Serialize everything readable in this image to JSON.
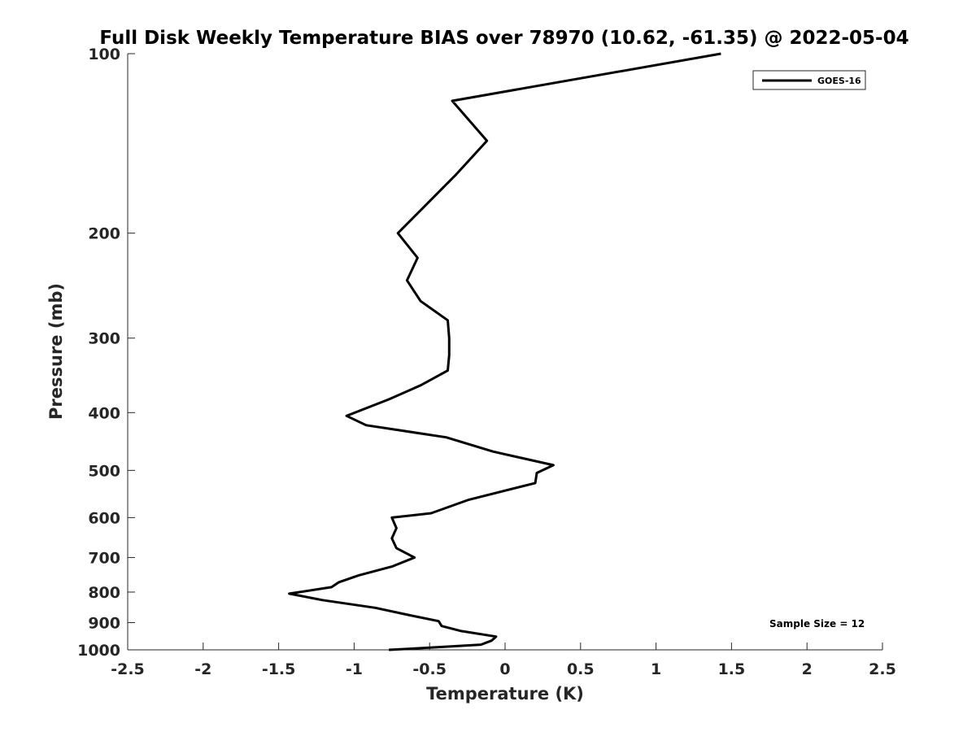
{
  "chart_data": {
    "type": "line",
    "title": "Full Disk Weekly Temperature BIAS over 78970 (10.62, -61.35) @ 2022-05-04",
    "xlabel": "Temperature (K)",
    "ylabel": "Pressure (mb)",
    "xlim": [
      -2.5,
      2.5
    ],
    "ylim": [
      100,
      1000
    ],
    "y_scale": "log",
    "y_reversed": true,
    "grid": false,
    "legend_position": "top-right",
    "x_ticks": [
      -2.5,
      -2,
      -1.5,
      -1,
      -0.5,
      0,
      0.5,
      1,
      1.5,
      2,
      2.5
    ],
    "x_tick_labels": [
      "-2.5",
      "-2",
      "-1.5",
      "-1",
      "-0.5",
      "0",
      "0.5",
      "1",
      "1.5",
      "2",
      "2.5"
    ],
    "y_ticks": [
      100,
      200,
      300,
      400,
      500,
      600,
      700,
      800,
      900,
      1000
    ],
    "y_tick_labels": [
      "100",
      "200",
      "300",
      "400",
      "500",
      "600",
      "700",
      "800",
      "900",
      "1000"
    ],
    "annotation": "Sample Size = 12",
    "series": [
      {
        "name": "GOES-16",
        "color": "#000000",
        "points": [
          {
            "t": 1.43,
            "p": 100
          },
          {
            "t": -0.35,
            "p": 120
          },
          {
            "t": -0.12,
            "p": 140
          },
          {
            "t": -0.33,
            "p": 160
          },
          {
            "t": -0.53,
            "p": 180
          },
          {
            "t": -0.71,
            "p": 200
          },
          {
            "t": -0.58,
            "p": 220
          },
          {
            "t": -0.65,
            "p": 240
          },
          {
            "t": -0.56,
            "p": 260
          },
          {
            "t": -0.38,
            "p": 280
          },
          {
            "t": -0.37,
            "p": 300
          },
          {
            "t": -0.37,
            "p": 320
          },
          {
            "t": -0.38,
            "p": 340
          },
          {
            "t": -0.56,
            "p": 360
          },
          {
            "t": -0.77,
            "p": 380
          },
          {
            "t": -1.05,
            "p": 405
          },
          {
            "t": -0.92,
            "p": 420
          },
          {
            "t": -0.39,
            "p": 440
          },
          {
            "t": -0.08,
            "p": 465
          },
          {
            "t": 0.32,
            "p": 490
          },
          {
            "t": 0.21,
            "p": 505
          },
          {
            "t": 0.2,
            "p": 525
          },
          {
            "t": -0.24,
            "p": 560
          },
          {
            "t": -0.49,
            "p": 590
          },
          {
            "t": -0.75,
            "p": 600
          },
          {
            "t": -0.72,
            "p": 625
          },
          {
            "t": -0.75,
            "p": 650
          },
          {
            "t": -0.72,
            "p": 675
          },
          {
            "t": -0.6,
            "p": 700
          },
          {
            "t": -0.75,
            "p": 725
          },
          {
            "t": -0.97,
            "p": 750
          },
          {
            "t": -1.1,
            "p": 770
          },
          {
            "t": -1.15,
            "p": 785
          },
          {
            "t": -1.43,
            "p": 805
          },
          {
            "t": -1.21,
            "p": 825
          },
          {
            "t": -0.86,
            "p": 850
          },
          {
            "t": -0.63,
            "p": 875
          },
          {
            "t": -0.44,
            "p": 895
          },
          {
            "t": -0.42,
            "p": 912
          },
          {
            "t": -0.29,
            "p": 930
          },
          {
            "t": -0.06,
            "p": 950
          },
          {
            "t": -0.09,
            "p": 965
          },
          {
            "t": -0.16,
            "p": 980
          },
          {
            "t": -0.45,
            "p": 990
          },
          {
            "t": -0.77,
            "p": 1000
          }
        ]
      }
    ]
  }
}
